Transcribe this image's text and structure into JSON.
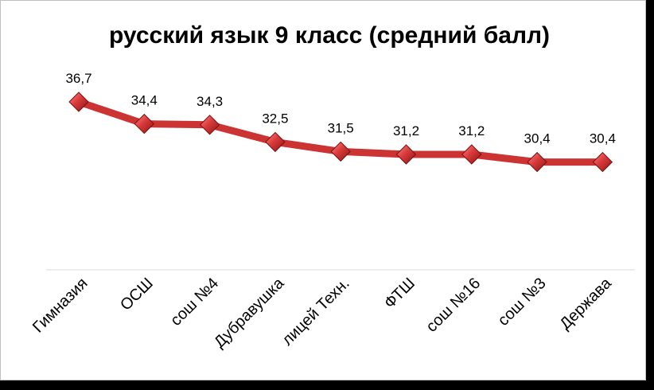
{
  "chart_data": {
    "type": "line",
    "title": "русский язык 9 класс (средний балл)",
    "categories": [
      "Гимназия",
      "ОСШ",
      "сош №4",
      "Дубравушка",
      "лицей Техн.",
      "ФТШ",
      "сош №16",
      "сош №3",
      "Держава"
    ],
    "series": [
      {
        "values": [
          36.7,
          34.4,
          34.3,
          32.5,
          31.5,
          31.2,
          31.2,
          30.4,
          30.4
        ]
      }
    ],
    "data_labels": [
      "36,7",
      "34,4",
      "34,3",
      "32,5",
      "31,5",
      "31,2",
      "31,2",
      "30,4",
      "30,4"
    ],
    "line_color": "#cc3333",
    "marker": "diamond",
    "grid": false,
    "legend": "none"
  }
}
